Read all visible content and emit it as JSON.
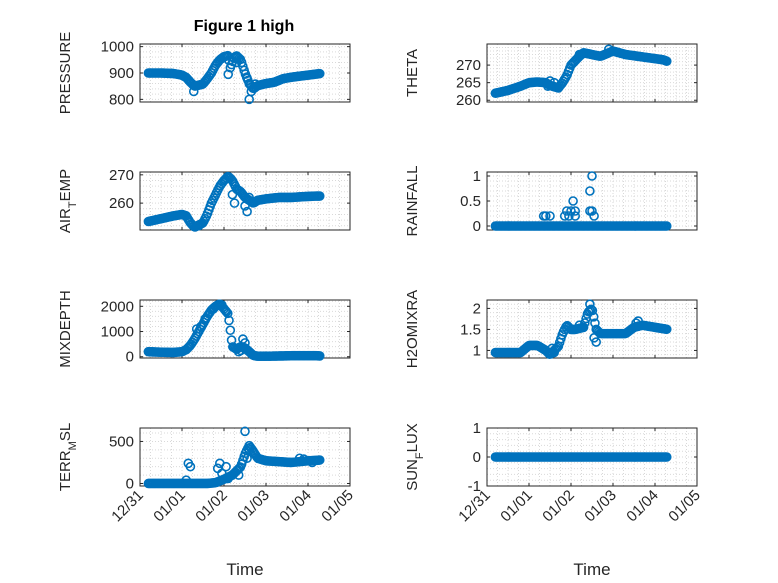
{
  "figure": {
    "title": "Figure 1 high"
  },
  "colors": {
    "marker": "#0072BD",
    "axis": "#262626",
    "grid": "#d9d9d9"
  },
  "chart_data": [
    {
      "type": "scatter",
      "id": "pressure",
      "title": "Figure 1 high",
      "ylabel": "PRESSURE",
      "xlabel": "",
      "xlim": [
        0,
        5
      ],
      "ylim": [
        790,
        1010
      ],
      "yticks": [
        800,
        900,
        1000
      ],
      "yticklabels": [
        "800",
        "900",
        "1000"
      ],
      "xticks": [
        0,
        1,
        2,
        3,
        4,
        5
      ],
      "xticklabels": [],
      "grid": "on",
      "curve": [
        [
          0.2,
          900
        ],
        [
          0.5,
          900
        ],
        [
          0.8,
          898
        ],
        [
          1.0,
          892
        ],
        [
          1.1,
          883
        ],
        [
          1.2,
          865
        ],
        [
          1.3,
          850
        ],
        [
          1.5,
          858
        ],
        [
          1.6,
          878
        ],
        [
          1.7,
          900
        ],
        [
          1.8,
          930
        ],
        [
          1.9,
          950
        ],
        [
          2.0,
          962
        ],
        [
          2.1,
          966
        ],
        [
          2.15,
          920
        ],
        [
          2.25,
          960
        ],
        [
          2.3,
          965
        ],
        [
          2.4,
          950
        ],
        [
          2.5,
          900
        ],
        [
          2.6,
          860
        ],
        [
          2.7,
          840
        ],
        [
          2.8,
          852
        ],
        [
          3.0,
          860
        ],
        [
          3.2,
          865
        ],
        [
          3.4,
          878
        ],
        [
          3.6,
          884
        ],
        [
          3.8,
          888
        ],
        [
          4.0,
          892
        ],
        [
          4.2,
          896
        ],
        [
          4.3,
          898
        ]
      ],
      "extra": [
        [
          1.28,
          830
        ],
        [
          2.1,
          895
        ],
        [
          2.55,
          880
        ],
        [
          2.6,
          800
        ],
        [
          2.65,
          830
        ],
        [
          2.75,
          858
        ],
        [
          2.3,
          940
        ]
      ]
    },
    {
      "type": "scatter",
      "id": "theta",
      "ylabel": "THETA",
      "xlabel": "",
      "xlim": [
        0,
        5
      ],
      "ylim": [
        259.5,
        276
      ],
      "yticks": [
        260,
        265,
        270
      ],
      "yticklabels": [
        "260",
        "265",
        "270"
      ],
      "xticks": [
        0,
        1,
        2,
        3,
        4,
        5
      ],
      "xticklabels": [],
      "grid": "on",
      "curve": [
        [
          0.2,
          262
        ],
        [
          0.5,
          262.8
        ],
        [
          0.8,
          264
        ],
        [
          1.0,
          265
        ],
        [
          1.2,
          265.2
        ],
        [
          1.4,
          265
        ],
        [
          1.5,
          264.2
        ],
        [
          1.7,
          263.5
        ],
        [
          1.8,
          265
        ],
        [
          1.9,
          267
        ],
        [
          2.0,
          270
        ],
        [
          2.2,
          272.5
        ],
        [
          2.3,
          273.5
        ],
        [
          2.5,
          273
        ],
        [
          2.7,
          272.5
        ],
        [
          2.9,
          273.5
        ],
        [
          3.0,
          274
        ],
        [
          3.3,
          273
        ],
        [
          3.6,
          272.5
        ],
        [
          3.9,
          272
        ],
        [
          4.2,
          271.5
        ],
        [
          4.3,
          271
        ]
      ],
      "extra": [
        [
          1.45,
          264
        ],
        [
          1.5,
          265.5
        ],
        [
          1.6,
          265
        ],
        [
          2.2,
          273
        ],
        [
          2.9,
          274.5
        ]
      ]
    },
    {
      "type": "scatter",
      "id": "air_temp",
      "ylabel": "AIR",
      "ylabel_sub": "T",
      "ylabel_rest": "EMP",
      "xlabel": "",
      "xlim": [
        0,
        5
      ],
      "ylim": [
        250.5,
        271
      ],
      "yticks": [
        260,
        270
      ],
      "yticklabels": [
        "260",
        "270"
      ],
      "xticks": [
        0,
        1,
        2,
        3,
        4,
        5
      ],
      "xticklabels": [],
      "grid": "on",
      "curve": [
        [
          0.2,
          253.5
        ],
        [
          0.5,
          254.5
        ],
        [
          0.8,
          255.5
        ],
        [
          1.0,
          256
        ],
        [
          1.1,
          255.5
        ],
        [
          1.2,
          253
        ],
        [
          1.3,
          251.5
        ],
        [
          1.5,
          253
        ],
        [
          1.6,
          256
        ],
        [
          1.7,
          260
        ],
        [
          1.8,
          263
        ],
        [
          1.9,
          266
        ],
        [
          2.0,
          268
        ],
        [
          2.1,
          269.5
        ],
        [
          2.2,
          268
        ],
        [
          2.3,
          265
        ],
        [
          2.4,
          264
        ],
        [
          2.5,
          262
        ],
        [
          2.6,
          261
        ],
        [
          2.7,
          260
        ],
        [
          2.8,
          261
        ],
        [
          3.0,
          261.5
        ],
        [
          3.3,
          262
        ],
        [
          3.6,
          262
        ],
        [
          3.9,
          262.3
        ],
        [
          4.2,
          262.5
        ],
        [
          4.3,
          262.5
        ]
      ],
      "extra": [
        [
          1.4,
          252
        ],
        [
          2.2,
          263
        ],
        [
          2.25,
          260
        ],
        [
          2.5,
          259
        ],
        [
          2.55,
          257
        ],
        [
          2.6,
          262
        ]
      ]
    },
    {
      "type": "scatter",
      "id": "rainfall",
      "ylabel": "RAINFALL",
      "xlabel": "",
      "xlim": [
        0,
        5
      ],
      "ylim": [
        -0.08,
        1.08
      ],
      "yticks": [
        0,
        0.5,
        1
      ],
      "yticklabels": [
        "0",
        "0.5",
        "1"
      ],
      "xticks": [
        0,
        1,
        2,
        3,
        4,
        5
      ],
      "xticklabels": [],
      "grid": "on",
      "curve": [
        [
          0.2,
          0
        ],
        [
          4.3,
          0
        ]
      ],
      "extra": [
        [
          1.35,
          0.2
        ],
        [
          1.4,
          0.2
        ],
        [
          1.5,
          0.2
        ],
        [
          1.85,
          0.2
        ],
        [
          1.9,
          0.3
        ],
        [
          1.95,
          0.2
        ],
        [
          2.0,
          0.3
        ],
        [
          2.05,
          0.5
        ],
        [
          2.1,
          0.3
        ],
        [
          2.1,
          0.2
        ],
        [
          2.45,
          0.3
        ],
        [
          2.5,
          0.3
        ],
        [
          2.45,
          0.7
        ],
        [
          2.5,
          1.0
        ],
        [
          2.55,
          0.2
        ]
      ]
    },
    {
      "type": "scatter",
      "id": "mixdepth",
      "ylabel": "MIXDEPTH",
      "xlabel": "",
      "xlim": [
        0,
        5
      ],
      "ylim": [
        -50,
        2250
      ],
      "yticks": [
        0,
        1000,
        2000
      ],
      "yticklabels": [
        "0",
        "1000",
        "2000"
      ],
      "xticks": [
        0,
        1,
        2,
        3,
        4,
        5
      ],
      "xticklabels": [],
      "grid": "on",
      "curve": [
        [
          0.2,
          200
        ],
        [
          0.5,
          180
        ],
        [
          0.8,
          170
        ],
        [
          1.0,
          200
        ],
        [
          1.1,
          280
        ],
        [
          1.2,
          450
        ],
        [
          1.3,
          700
        ],
        [
          1.4,
          1000
        ],
        [
          1.5,
          1300
        ],
        [
          1.6,
          1600
        ],
        [
          1.7,
          1850
        ],
        [
          1.8,
          2000
        ],
        [
          1.9,
          2100
        ],
        [
          2.0,
          1900
        ],
        [
          2.1,
          1700
        ],
        [
          2.2,
          400
        ],
        [
          2.3,
          300
        ],
        [
          2.4,
          400
        ],
        [
          2.5,
          350
        ],
        [
          2.6,
          200
        ],
        [
          2.7,
          50
        ],
        [
          2.8,
          20
        ],
        [
          3.0,
          20
        ],
        [
          3.3,
          30
        ],
        [
          3.6,
          40
        ],
        [
          3.9,
          40
        ],
        [
          4.2,
          40
        ],
        [
          4.3,
          30
        ]
      ],
      "extra": [
        [
          1.35,
          1100
        ],
        [
          1.45,
          1200
        ],
        [
          1.55,
          1500
        ],
        [
          1.75,
          1900
        ],
        [
          1.95,
          2050
        ],
        [
          2.05,
          1800
        ],
        [
          2.35,
          200
        ],
        [
          2.45,
          700
        ],
        [
          2.5,
          550
        ],
        [
          2.4,
          250
        ]
      ]
    },
    {
      "type": "scatter",
      "id": "h2omixra",
      "ylabel": "H2OMIXRA",
      "xlabel": "",
      "xlim": [
        0,
        5
      ],
      "ylim": [
        0.82,
        2.2
      ],
      "yticks": [
        1,
        1.5,
        2
      ],
      "yticklabels": [
        "1",
        "1.5",
        "2"
      ],
      "xticks": [
        0,
        1,
        2,
        3,
        4,
        5
      ],
      "xticklabels": [],
      "grid": "on",
      "curve": [
        [
          0.2,
          0.95
        ],
        [
          0.8,
          0.95
        ],
        [
          1.0,
          1.12
        ],
        [
          1.2,
          1.12
        ],
        [
          1.4,
          1.0
        ],
        [
          1.5,
          0.9
        ],
        [
          1.7,
          1.1
        ],
        [
          1.8,
          1.4
        ],
        [
          1.9,
          1.6
        ],
        [
          2.0,
          1.5
        ],
        [
          2.1,
          1.5
        ],
        [
          2.3,
          1.55
        ],
        [
          2.4,
          1.9
        ],
        [
          2.5,
          2.0
        ],
        [
          2.6,
          1.5
        ],
        [
          2.7,
          1.4
        ],
        [
          3.0,
          1.4
        ],
        [
          3.3,
          1.4
        ],
        [
          3.5,
          1.55
        ],
        [
          3.7,
          1.6
        ],
        [
          4.0,
          1.55
        ],
        [
          4.3,
          1.5
        ]
      ],
      "extra": [
        [
          2.2,
          1.6
        ],
        [
          2.45,
          2.1
        ],
        [
          2.55,
          1.3
        ],
        [
          2.6,
          1.2
        ],
        [
          3.55,
          1.65
        ],
        [
          3.6,
          1.7
        ],
        [
          1.6,
          0.95
        ],
        [
          1.55,
          1.05
        ]
      ]
    },
    {
      "type": "scatter",
      "id": "terr_msl",
      "ylabel": "TERR",
      "ylabel_sub": "M",
      "ylabel_rest": "SL",
      "xlabel": "Time",
      "xlim": [
        0,
        5
      ],
      "ylim": [
        -30,
        660
      ],
      "yticks": [
        0,
        500
      ],
      "yticklabels": [
        "0",
        "500"
      ],
      "xticks": [
        0,
        1,
        2,
        3,
        4,
        5
      ],
      "xticklabels": [
        "12/31",
        "01/01",
        "01/02",
        "01/03",
        "01/04",
        "01/05"
      ],
      "grid": "on",
      "curve": [
        [
          0.2,
          0
        ],
        [
          1.0,
          0
        ],
        [
          1.3,
          0
        ],
        [
          1.6,
          0
        ],
        [
          1.8,
          10
        ],
        [
          2.0,
          50
        ],
        [
          2.2,
          100
        ],
        [
          2.4,
          200
        ],
        [
          2.5,
          350
        ],
        [
          2.6,
          450
        ],
        [
          2.7,
          380
        ],
        [
          2.8,
          300
        ],
        [
          3.0,
          270
        ],
        [
          3.3,
          260
        ],
        [
          3.6,
          250
        ],
        [
          3.8,
          260
        ],
        [
          4.0,
          270
        ],
        [
          4.2,
          275
        ],
        [
          4.3,
          280
        ]
      ],
      "extra": [
        [
          1.1,
          40
        ],
        [
          1.15,
          240
        ],
        [
          1.2,
          200
        ],
        [
          1.85,
          180
        ],
        [
          1.9,
          240
        ],
        [
          1.95,
          120
        ],
        [
          2.05,
          200
        ],
        [
          2.1,
          60
        ],
        [
          2.35,
          100
        ],
        [
          2.5,
          620
        ],
        [
          2.55,
          300
        ],
        [
          2.6,
          400
        ],
        [
          3.8,
          300
        ],
        [
          3.9,
          290
        ],
        [
          4.1,
          250
        ]
      ]
    },
    {
      "type": "scatter",
      "id": "sun_flux",
      "ylabel": "SUN",
      "ylabel_sub": "F",
      "ylabel_rest": "LUX",
      "xlabel": "Time",
      "xlim": [
        0,
        5
      ],
      "ylim": [
        -1,
        1
      ],
      "yticks": [
        -1,
        0,
        1
      ],
      "yticklabels": [
        "-1",
        "0",
        "1"
      ],
      "xticks": [
        0,
        1,
        2,
        3,
        4,
        5
      ],
      "xticklabels": [
        "12/31",
        "01/01",
        "01/02",
        "01/03",
        "01/04",
        "01/05"
      ],
      "grid": "on",
      "curve": [
        [
          0.2,
          0
        ],
        [
          4.3,
          0
        ]
      ],
      "extra": []
    }
  ]
}
